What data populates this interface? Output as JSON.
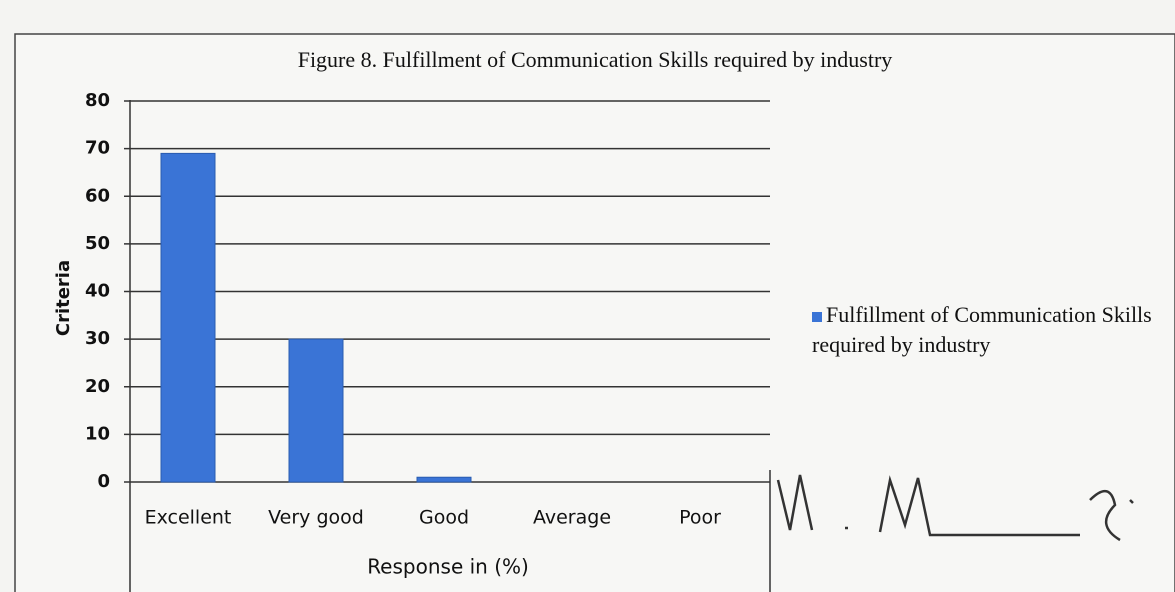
{
  "chart_data": {
    "type": "bar",
    "title": "Figure 8. Fulfillment of Communication Skills required by industry",
    "y_label": "Criteria",
    "x_label": "Response in (%)",
    "categories": [
      "Excellent",
      "Very good",
      "Good",
      "Average",
      "Poor"
    ],
    "series": [
      {
        "name": "Fulfillment of Communication Skills required by industry",
        "color": "#3a74d6",
        "values": [
          69,
          30,
          1,
          0,
          0
        ]
      }
    ],
    "ylim": [
      0,
      80
    ],
    "yticks": [
      0,
      10,
      20,
      30,
      40,
      50,
      60,
      70,
      80
    ],
    "grid": true,
    "legend": "right"
  }
}
